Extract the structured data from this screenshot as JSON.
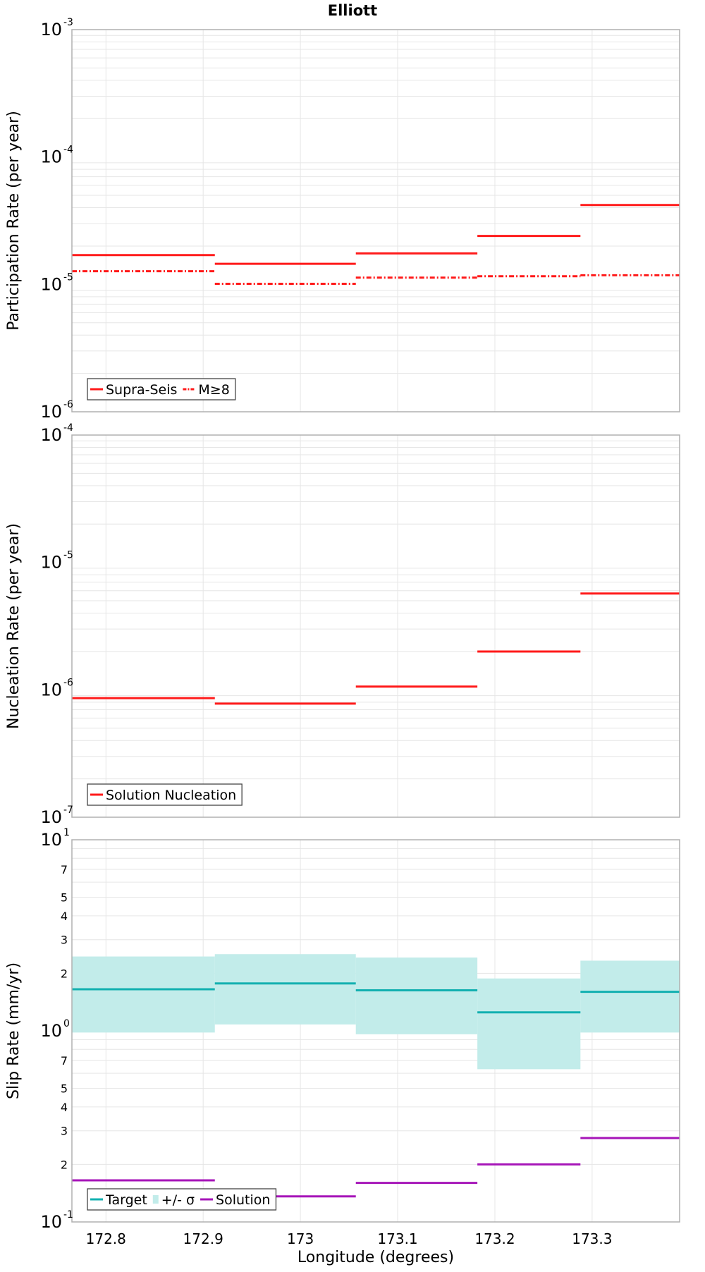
{
  "title": "Elliott",
  "xlabel": "Longitude (degrees)",
  "x_ticks": [
    "172.8",
    "172.9",
    "173",
    "173.1",
    "173.2",
    "173.3"
  ],
  "colors": {
    "supra": "#ff1a1a",
    "target": "#12b0b0",
    "band": "#c2ecea",
    "solution": "#a614b8",
    "grid": "#e6e6e6",
    "frame": "#b0b0b0"
  },
  "chart_data": [
    {
      "type": "line",
      "step": true,
      "ylabel": "Participation Rate (per year)",
      "yscale": "log",
      "ylim": [
        1e-06,
        0.001
      ],
      "xlim": [
        172.765,
        173.39
      ],
      "y_ticks": [
        {
          "base": "10",
          "exp": "-6",
          "value": 1e-06
        },
        {
          "base": "10",
          "exp": "-5",
          "value": 1e-05
        },
        {
          "base": "10",
          "exp": "-4",
          "value": 0.0001
        },
        {
          "base": "10",
          "exp": "-3",
          "value": 0.001
        }
      ],
      "legend": {
        "position": "bottom-left",
        "items": [
          {
            "label": "Supra-Seis",
            "style": "solid"
          },
          {
            "label": "M≥8",
            "style": "dashdot"
          }
        ]
      },
      "series": [
        {
          "name": "Supra-Seis",
          "style": "solid",
          "bins": [
            {
              "x0": 172.765,
              "x1": 172.912,
              "y": 1.7e-05
            },
            {
              "x0": 172.912,
              "x1": 173.057,
              "y": 1.45e-05
            },
            {
              "x0": 173.057,
              "x1": 173.182,
              "y": 1.75e-05
            },
            {
              "x0": 173.182,
              "x1": 173.288,
              "y": 2.4e-05
            },
            {
              "x0": 173.288,
              "x1": 173.39,
              "y": 4.2e-05
            }
          ]
        },
        {
          "name": "M≥8",
          "style": "dashdot",
          "bins": [
            {
              "x0": 172.765,
              "x1": 172.912,
              "y": 1.27e-05
            },
            {
              "x0": 172.912,
              "x1": 173.057,
              "y": 1.01e-05
            },
            {
              "x0": 173.057,
              "x1": 173.182,
              "y": 1.13e-05
            },
            {
              "x0": 173.182,
              "x1": 173.288,
              "y": 1.16e-05
            },
            {
              "x0": 173.288,
              "x1": 173.39,
              "y": 1.18e-05
            }
          ]
        }
      ]
    },
    {
      "type": "line",
      "step": true,
      "ylabel": "Nucleation Rate (per year)",
      "yscale": "log",
      "ylim": [
        1e-07,
        0.0001
      ],
      "xlim": [
        172.765,
        173.39
      ],
      "y_ticks": [
        {
          "base": "10",
          "exp": "-7",
          "value": 1e-07
        },
        {
          "base": "10",
          "exp": "-6",
          "value": 1e-06
        },
        {
          "base": "10",
          "exp": "-5",
          "value": 1e-05
        },
        {
          "base": "10",
          "exp": "-4",
          "value": 0.0001
        }
      ],
      "legend": {
        "position": "bottom-left",
        "items": [
          {
            "label": "Solution Nucleation",
            "style": "solid"
          }
        ]
      },
      "series": [
        {
          "name": "Solution Nucleation",
          "style": "solid",
          "bins": [
            {
              "x0": 172.765,
              "x1": 172.912,
              "y": 8.6e-07
            },
            {
              "x0": 172.912,
              "x1": 173.057,
              "y": 7.8e-07
            },
            {
              "x0": 173.057,
              "x1": 173.182,
              "y": 1.06e-06
            },
            {
              "x0": 173.182,
              "x1": 173.288,
              "y": 2e-06
            },
            {
              "x0": 173.288,
              "x1": 173.39,
              "y": 5.7e-06
            }
          ]
        }
      ]
    },
    {
      "type": "line",
      "step": true,
      "ylabel": "Slip Rate (mm/yr)",
      "yscale": "log",
      "ylim": [
        0.1,
        10
      ],
      "xlim": [
        172.765,
        173.39
      ],
      "y_ticks": [
        {
          "base": "10",
          "exp": "-1",
          "value": 0.1
        },
        {
          "base": "10",
          "exp": "0",
          "value": 1
        },
        {
          "base": "10",
          "exp": "1",
          "value": 10
        }
      ],
      "y_minor_labels": [
        {
          "label": "2",
          "value": 0.2
        },
        {
          "label": "3",
          "value": 0.3
        },
        {
          "label": "4",
          "value": 0.4
        },
        {
          "label": "5",
          "value": 0.5
        },
        {
          "label": "7",
          "value": 0.7
        },
        {
          "label": "2",
          "value": 2
        },
        {
          "label": "3",
          "value": 3
        },
        {
          "label": "4",
          "value": 4
        },
        {
          "label": "5",
          "value": 5
        },
        {
          "label": "7",
          "value": 7
        }
      ],
      "legend": {
        "position": "bottom-left",
        "items": [
          {
            "label": "Target",
            "style": "solid"
          },
          {
            "label": "+/- σ",
            "style": "band"
          },
          {
            "label": "Solution",
            "style": "solid"
          }
        ]
      },
      "series": [
        {
          "name": "+/- σ",
          "style": "band",
          "bins": [
            {
              "x0": 172.765,
              "x1": 172.912,
              "lo": 0.98,
              "hi": 2.45
            },
            {
              "x0": 172.912,
              "x1": 173.057,
              "lo": 1.08,
              "hi": 2.52
            },
            {
              "x0": 173.057,
              "x1": 173.182,
              "lo": 0.96,
              "hi": 2.42
            },
            {
              "x0": 173.182,
              "x1": 173.288,
              "lo": 0.63,
              "hi": 1.88
            },
            {
              "x0": 173.288,
              "x1": 173.39,
              "lo": 0.98,
              "hi": 2.33
            }
          ]
        },
        {
          "name": "Target",
          "style": "solid",
          "bins": [
            {
              "x0": 172.765,
              "x1": 172.912,
              "y": 1.65
            },
            {
              "x0": 172.912,
              "x1": 173.057,
              "y": 1.77
            },
            {
              "x0": 173.057,
              "x1": 173.182,
              "y": 1.63
            },
            {
              "x0": 173.182,
              "x1": 173.288,
              "y": 1.25
            },
            {
              "x0": 173.288,
              "x1": 173.39,
              "y": 1.6
            }
          ]
        },
        {
          "name": "Solution",
          "style": "solid",
          "bins": [
            {
              "x0": 172.765,
              "x1": 172.912,
              "y": 0.165
            },
            {
              "x0": 172.912,
              "x1": 173.057,
              "y": 0.136
            },
            {
              "x0": 173.057,
              "x1": 173.182,
              "y": 0.16
            },
            {
              "x0": 173.182,
              "x1": 173.288,
              "y": 0.2
            },
            {
              "x0": 173.288,
              "x1": 173.39,
              "y": 0.275
            }
          ]
        }
      ]
    }
  ]
}
